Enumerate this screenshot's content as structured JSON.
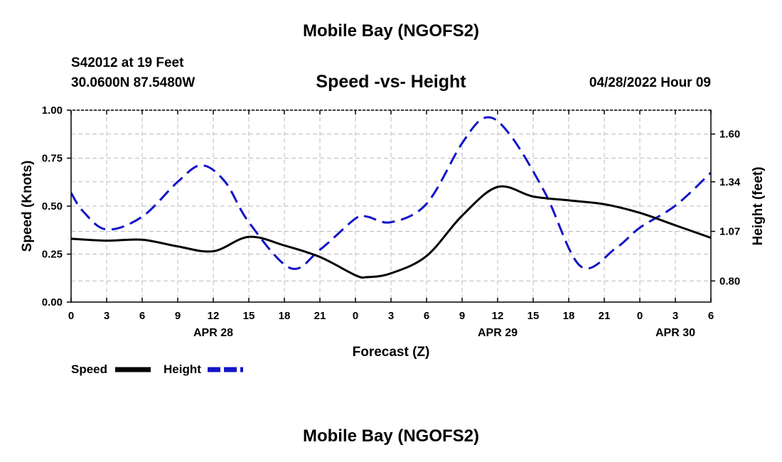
{
  "header": {
    "title": "Mobile Bay (NGOFS2)",
    "station": "S42012 at 19 Feet",
    "coords": "30.0600N  87.5480W",
    "subtitle": "Speed -vs- Height",
    "datetime": "04/28/2022 Hour 09",
    "footer_title": "Mobile Bay (NGOFS2)"
  },
  "chart_data": {
    "type": "line",
    "xlabel": "Forecast (Z)",
    "ylabel_left": "Speed (Knots)",
    "ylabel_right": "Height (feet)",
    "x_unit": "forecast hours from APR 28 00Z",
    "xlim": [
      0,
      54
    ],
    "x_ticks": [
      0,
      3,
      6,
      9,
      12,
      15,
      18,
      21,
      24,
      27,
      30,
      33,
      36,
      39,
      42,
      45,
      48,
      51,
      54
    ],
    "x_tick_labels": [
      "0",
      "3",
      "6",
      "9",
      "12",
      "15",
      "18",
      "21",
      "0",
      "3",
      "6",
      "9",
      "12",
      "15",
      "18",
      "21",
      "0",
      "3",
      "6"
    ],
    "date_labels": [
      {
        "x": 12,
        "label": "APR 28"
      },
      {
        "x": 36,
        "label": "APR 29"
      },
      {
        "x": 51,
        "label": "APR 30"
      }
    ],
    "ylim_left": [
      0,
      1.0
    ],
    "y_ticks_left": [
      0.0,
      0.25,
      0.5,
      0.75,
      1.0
    ],
    "y_tick_labels_left": [
      "0.00",
      "0.25",
      "0.50",
      "0.75",
      "1.00"
    ],
    "ylim_right": [
      0.685,
      1.73
    ],
    "y_ticks_right": [
      0.8,
      1.07,
      1.34,
      1.6
    ],
    "y_tick_labels_right": [
      "0.80",
      "1.07",
      "1.34",
      "1.60"
    ],
    "legend": [
      {
        "name": "Speed",
        "color": "#000000",
        "dash": "solid"
      },
      {
        "name": "Height",
        "color": "#1414c8",
        "dash": "dashed"
      }
    ],
    "series": [
      {
        "name": "Speed",
        "axis": "left",
        "color": "#000000",
        "dash": "solid",
        "x": [
          0,
          3,
          6,
          9,
          12,
          15,
          18,
          21,
          24,
          25,
          27,
          30,
          33,
          36,
          39,
          42,
          45,
          48,
          51,
          54
        ],
        "values": [
          0.33,
          0.32,
          0.325,
          0.29,
          0.265,
          0.34,
          0.295,
          0.235,
          0.14,
          0.13,
          0.15,
          0.24,
          0.45,
          0.6,
          0.55,
          0.53,
          0.51,
          0.465,
          0.4,
          0.335
        ]
      },
      {
        "name": "Height",
        "axis": "right",
        "color": "#1414c8",
        "dash": "dashed",
        "x": [
          0,
          1,
          3,
          6,
          9,
          11,
          13,
          15,
          18.5,
          21,
          24,
          25,
          27,
          30,
          33,
          35,
          37,
          40,
          43,
          46,
          48,
          51,
          54
        ],
        "values": [
          1.28,
          1.18,
          1.08,
          1.15,
          1.34,
          1.43,
          1.34,
          1.12,
          0.87,
          0.97,
          1.14,
          1.15,
          1.12,
          1.22,
          1.55,
          1.69,
          1.6,
          1.28,
          0.88,
          0.98,
          1.09,
          1.21,
          1.39
        ]
      }
    ]
  }
}
